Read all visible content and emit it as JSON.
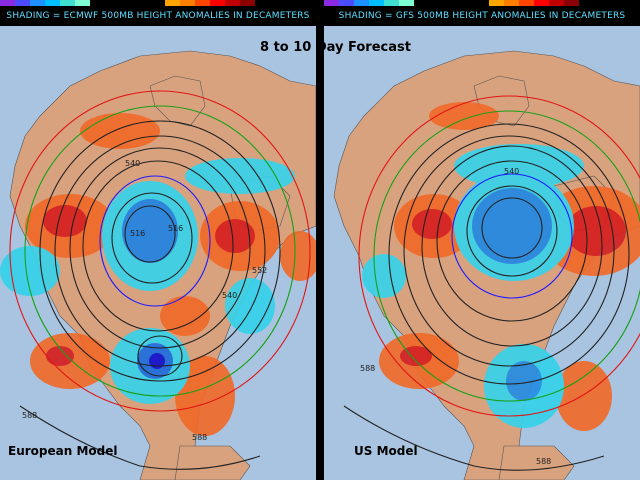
{
  "title": "8 to 10 Day Forecast",
  "colors": {
    "ocean": "#a9c4e0",
    "land": "#d9a27f",
    "positive_anomaly": "#f06a2a",
    "positive_strong": "#d61f1f",
    "negative_anomaly": "#37d2ea",
    "negative_strong": "#1c6fe0",
    "contour": "#222222",
    "contour_blue": "#1a1aff",
    "contour_green": "#17a017",
    "contour_red": "#e01515",
    "header_text": "#5ee0ff"
  },
  "panels": [
    {
      "id": "left",
      "header": "SHADING = ECMWF 500MB HEIGHT ANOMALIES IN DECAMETERS",
      "model_label": "European Model",
      "contour_labels": [
        "540",
        "516",
        "516",
        "552",
        "540",
        "588",
        "588"
      ]
    },
    {
      "id": "right",
      "header": "SHADING = GFS 500MB HEIGHT ANOMALIES IN DECAMETERS",
      "model_label": "US Model",
      "contour_labels": [
        "540",
        "588",
        "588"
      ]
    }
  ]
}
